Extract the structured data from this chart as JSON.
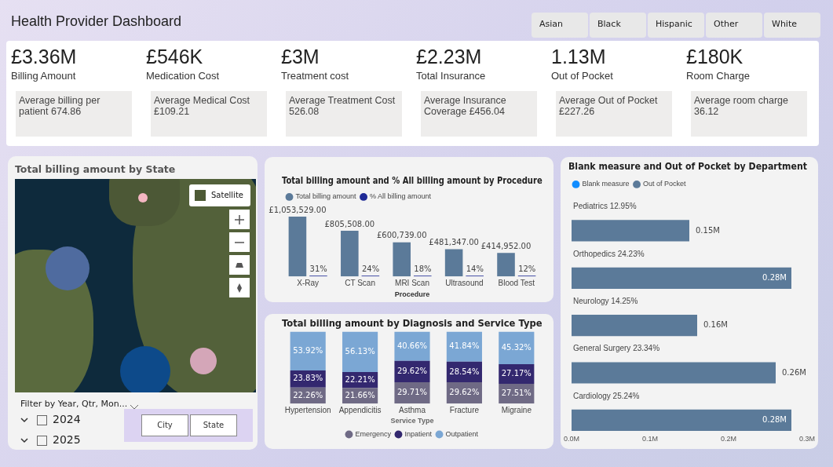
{
  "chart_data": [
    {
      "type": "other",
      "title": "Health Provider Dashboard",
      "annotations": [
        "Asian",
        "Black",
        "Hispanic",
        "Other",
        "White",
        "£3.36M",
        "Billing Amount",
        "Average billing per patient 674.86",
        "£546K",
        "Medication Cost",
        "Average Medical Cost £109.21",
        "£3M",
        "Treatment cost",
        "Average Treatment Cost 526.08",
        "£2.23M",
        "Total Insurance",
        "Average Insurance Coverage £456.04",
        "1.13M",
        "Out of Pocket",
        "Average Out of Pocket £227.26",
        "£180K",
        "Room Charge",
        "Average room charge 36.12"
      ]
    },
    {
      "type": "other",
      "title": "Total billing amount by State",
      "annotations": [
        "Satellite",
        "Filter by Year, Qtr, Mon...",
        "2024",
        "2025",
        "City",
        "State"
      ]
    },
    {
      "type": "bar",
      "title": "Total billing amount and % All billing amount by Procedure",
      "xlabel": "Procedure",
      "categories": [
        "X-Ray",
        "CT Scan",
        "MRI Scan",
        "Ultrasound",
        "Blood Test"
      ],
      "legend": "top left",
      "tick_labels": "x",
      "series": [
        {
          "name": "Total billing amount",
          "color": "#5b7a99",
          "values": [
            1053529,
            805508,
            600739,
            481347,
            414952
          ],
          "value_labels": [
            "£1,053,529.00",
            "£805,508.00",
            "£600,739.00",
            "£481,347.00",
            "£414,952.00"
          ]
        },
        {
          "name": "% All billing amount",
          "color": "#1f2a96",
          "values": [
            31,
            24,
            18,
            14,
            12
          ],
          "value_labels": [
            "31%",
            "24%",
            "18%",
            "14%",
            "12%"
          ]
        }
      ]
    },
    {
      "type": "bar",
      "title": "Total billing amount by Diagnosis and Service Type",
      "categories": [
        "Hypertension",
        "Appendicitis",
        "Asthma",
        "Fracture",
        "Migraine"
      ],
      "stacked": true,
      "ylim": [
        0,
        100
      ],
      "tick_labels": "x",
      "legend": "bottom",
      "legend_title": "Service Type",
      "series": [
        {
          "name": "Emergency",
          "color": "#6f6a85",
          "values": [
            22.26,
            21.66,
            29.71,
            29.62,
            27.51
          ],
          "value_labels": [
            "22.26%",
            "21.66%",
            "29.71%",
            "29.62%",
            "27.51%"
          ]
        },
        {
          "name": "Inpatient",
          "color": "#33286f",
          "values": [
            23.83,
            22.21,
            29.62,
            28.54,
            27.17
          ],
          "value_labels": [
            "23.83%",
            "22.21%",
            "29.62%",
            "28.54%",
            "27.17%"
          ]
        },
        {
          "name": "Outpatient",
          "color": "#7ba7d4",
          "values": [
            53.92,
            56.13,
            40.66,
            41.84,
            45.32
          ],
          "value_labels": [
            "53.92%",
            "56.13%",
            "40.66%",
            "41.84%",
            "45.32%"
          ]
        }
      ]
    },
    {
      "type": "bar",
      "title": "Blank measure and Out of Pocket by Department",
      "orientation": "horizontal",
      "categories": [
        "Pediatrics 12.95%",
        "Orthopedics 24.23%",
        "Neurology 14.25%",
        "General Surgery 23.34%",
        "Cardiology 25.24%"
      ],
      "xlim": [
        0,
        0.3
      ],
      "xticks": [
        {
          "value": 0,
          "label": "0.0M"
        },
        {
          "value": 0.1,
          "label": "0.1M"
        },
        {
          "value": 0.2,
          "label": "0.2M"
        },
        {
          "value": 0.3,
          "label": "0.3M"
        }
      ],
      "legend": "top left",
      "series": [
        {
          "name": "Blank measure",
          "color": "#118dff",
          "values": [
            null,
            null,
            null,
            null,
            null
          ]
        },
        {
          "name": "Out of Pocket",
          "color": "#5b7a99",
          "values": [
            0.15,
            0.28,
            0.16,
            0.26,
            0.28
          ],
          "value_labels": [
            "0.15M",
            "0.28M",
            "0.16M",
            "0.26M",
            "0.28M"
          ]
        }
      ]
    }
  ]
}
